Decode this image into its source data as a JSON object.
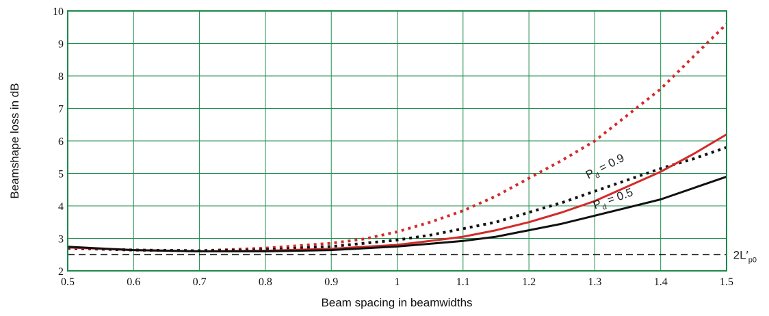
{
  "chart_data": {
    "type": "line",
    "xlabel": "Beam spacing in beamwidths",
    "ylabel": "Beamshape loss in dB",
    "xlim": [
      0.5,
      1.5
    ],
    "ylim": [
      2,
      10
    ],
    "xticks": [
      "0.5",
      "0.6",
      "0.7",
      "0.8",
      "0.9",
      "1",
      "1.1",
      "1.2",
      "1.3",
      "1.4",
      "1.5"
    ],
    "yticks": [
      "2",
      "3",
      "4",
      "5",
      "6",
      "7",
      "8",
      "9",
      "10"
    ],
    "grid": true,
    "grid_color": "#1a8a4a",
    "series": [
      {
        "style": "dotted",
        "color": "#d42a2a",
        "x": [
          0.5,
          0.6,
          0.7,
          0.8,
          0.9,
          0.95,
          1.0,
          1.05,
          1.1,
          1.15,
          1.2,
          1.25,
          1.3,
          1.35,
          1.4,
          1.45,
          1.5
        ],
        "y": [
          2.7,
          2.64,
          2.62,
          2.7,
          2.85,
          2.98,
          3.2,
          3.5,
          3.85,
          4.3,
          4.85,
          5.4,
          6.0,
          6.8,
          7.6,
          8.6,
          9.6
        ]
      },
      {
        "style": "dotted",
        "color": "#111111",
        "x": [
          0.5,
          0.6,
          0.7,
          0.8,
          0.9,
          1.0,
          1.05,
          1.1,
          1.15,
          1.2,
          1.25,
          1.3,
          1.35,
          1.4,
          1.45,
          1.5
        ],
        "y": [
          2.7,
          2.64,
          2.62,
          2.65,
          2.75,
          2.95,
          3.1,
          3.3,
          3.5,
          3.8,
          4.1,
          4.45,
          4.8,
          5.15,
          5.45,
          5.8
        ]
      },
      {
        "style": "solid",
        "color": "#d42a2a",
        "x": [
          0.5,
          0.6,
          0.7,
          0.8,
          0.9,
          1.0,
          1.05,
          1.1,
          1.15,
          1.2,
          1.25,
          1.3,
          1.35,
          1.4,
          1.45,
          1.5
        ],
        "y": [
          2.72,
          2.64,
          2.6,
          2.62,
          2.68,
          2.8,
          2.92,
          3.05,
          3.25,
          3.5,
          3.8,
          4.15,
          4.6,
          5.05,
          5.6,
          6.2
        ]
      },
      {
        "style": "solid",
        "color": "#111111",
        "x": [
          0.5,
          0.6,
          0.7,
          0.8,
          0.9,
          1.0,
          1.1,
          1.15,
          1.2,
          1.25,
          1.3,
          1.35,
          1.4,
          1.45,
          1.5
        ],
        "y": [
          2.74,
          2.64,
          2.6,
          2.6,
          2.64,
          2.75,
          2.92,
          3.05,
          3.25,
          3.45,
          3.7,
          3.95,
          4.2,
          4.55,
          4.9
        ]
      },
      {
        "style": "dashed",
        "color": "#111111",
        "x": [
          0.5,
          1.5
        ],
        "y": [
          2.5,
          2.5
        ]
      }
    ],
    "annotations": [
      {
        "text": "P",
        "sub": "d",
        "rest": " = 0.9",
        "x": 1.29,
        "y": 4.95,
        "angle": -27
      },
      {
        "text": "P",
        "sub": "d",
        "rest": " = 0.5",
        "x": 1.3,
        "y": 4.02,
        "angle": -20
      },
      {
        "text": "2L′",
        "sub": "p0",
        "rest": "",
        "x": 1.51,
        "y": 2.5,
        "angle": 0
      }
    ]
  }
}
